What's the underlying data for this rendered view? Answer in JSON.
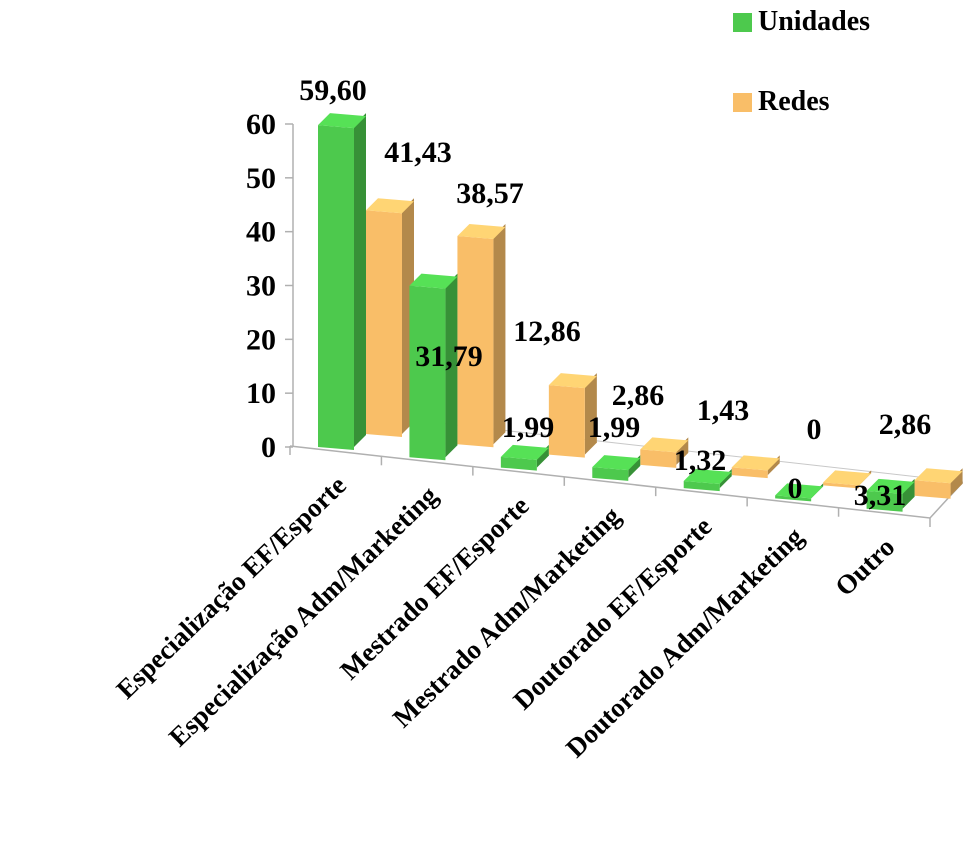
{
  "chart_data": {
    "type": "bar",
    "categories": [
      "Especialização EF/Esporte",
      "Especialização Adm/Marketing",
      "Mestrado EF/Esporte",
      "Mestrado Adm/Marketing",
      "Doutorado EF/Esporte",
      "Doutorado Adm/Marketing",
      "Outro"
    ],
    "series": [
      {
        "name": "Unidades",
        "values": [
          59.6,
          31.79,
          1.99,
          1.99,
          1.32,
          0,
          3.31
        ],
        "labels": [
          "59,60",
          "31,79",
          "1,99",
          "1,99",
          "1,32",
          "0",
          "3,31"
        ],
        "color": "#4dc94d"
      },
      {
        "name": "Redes",
        "values": [
          41.43,
          38.57,
          12.86,
          2.86,
          1.43,
          0,
          2.86
        ],
        "labels": [
          "41,43",
          "38,57",
          "12,86",
          "2,86",
          "1,43",
          "0",
          "2,86"
        ],
        "color": "#f9be68"
      }
    ],
    "y_ticks": [
      "0",
      "10",
      "20",
      "30",
      "40",
      "50",
      "60"
    ],
    "ylim": [
      0,
      60
    ],
    "style": "3d-column",
    "legend_position": "top-right",
    "grid": false
  }
}
